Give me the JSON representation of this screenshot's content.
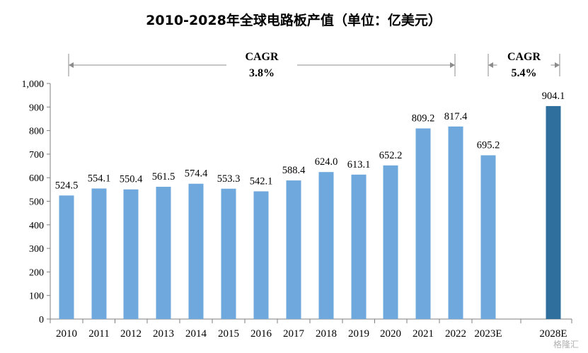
{
  "chart_data": {
    "type": "bar",
    "title": "2010-2028年全球电路板产值（单位：亿美元）",
    "xlabel": "",
    "ylabel": "",
    "ylim": [
      0,
      1000
    ],
    "yticks": [
      0,
      100,
      200,
      300,
      400,
      500,
      600,
      700,
      800,
      900,
      1000
    ],
    "ytick_labels": [
      "0",
      "100",
      "200",
      "300",
      "400",
      "500",
      "600",
      "700",
      "800",
      "900",
      "1,000"
    ],
    "grid": false,
    "legend": "none",
    "categories": [
      "2010",
      "2011",
      "2012",
      "2013",
      "2014",
      "2015",
      "2016",
      "2017",
      "2018",
      "2019",
      "2020",
      "2021",
      "2022",
      "2023E",
      "2028E"
    ],
    "values": [
      524.5,
      554.1,
      550.4,
      561.5,
      574.4,
      553.3,
      542.1,
      588.4,
      624.0,
      613.1,
      652.2,
      809.2,
      817.4,
      695.2,
      904.1
    ],
    "value_labels": [
      "524.5",
      "554.1",
      "550.4",
      "561.5",
      "574.4",
      "553.3",
      "542.1",
      "588.4",
      "624.0",
      "613.1",
      "652.2",
      "809.2",
      "817.4",
      "695.2",
      "904.1"
    ],
    "colors": {
      "default": "#6fa8dc",
      "highlight": "#2e6f9e"
    },
    "highlight_category": "2028E",
    "annotations": [
      {
        "label": "CAGR",
        "value": "3.8%",
        "from": "2010",
        "to": "2022"
      },
      {
        "label": "CAGR",
        "value": "5.4%",
        "from": "2023E",
        "to": "2028E"
      }
    ]
  },
  "watermark": "格隆汇"
}
